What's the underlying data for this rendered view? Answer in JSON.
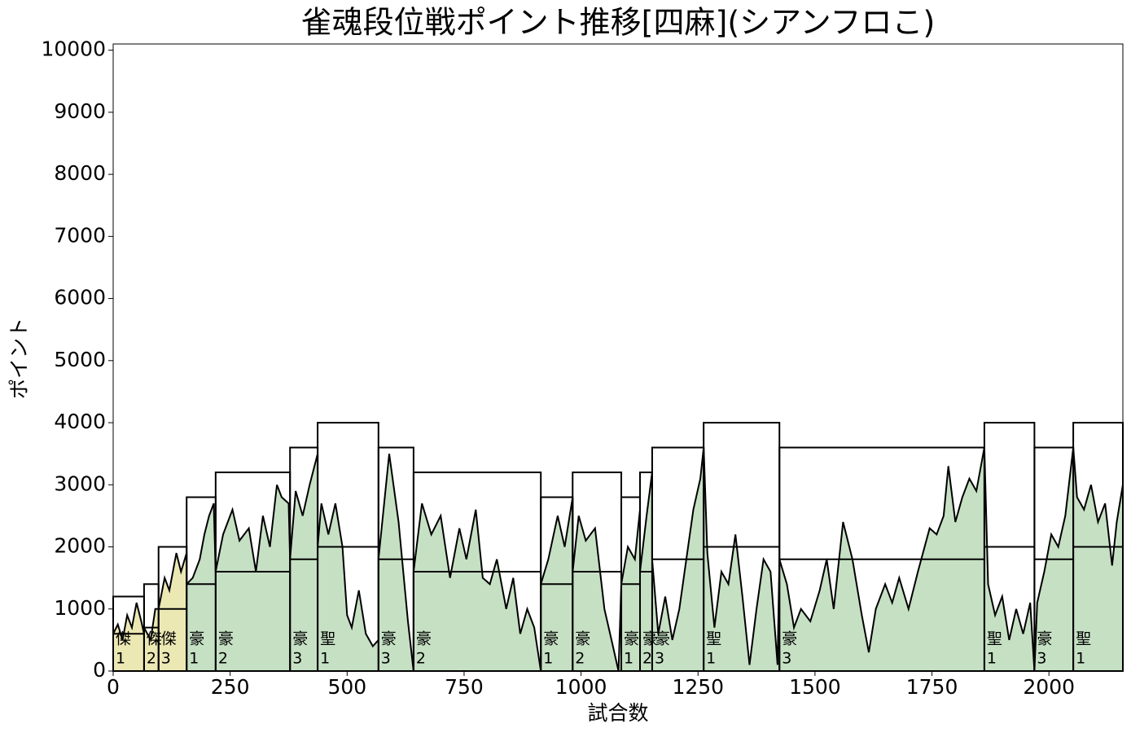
{
  "chart_data": {
    "type": "line",
    "title": "雀魂段位戦ポイント推移[四麻](シアンフロこ)",
    "xlabel": "試合数",
    "ylabel": "ポイント",
    "xlim": [
      0,
      2158
    ],
    "ylim": [
      0,
      10100
    ],
    "xticks": [
      0,
      250,
      500,
      750,
      1000,
      1250,
      1500,
      1750,
      2000
    ],
    "yticks": [
      0,
      1000,
      2000,
      3000,
      4000,
      5000,
      6000,
      7000,
      8000,
      9000,
      10000
    ],
    "line_color": "#000000",
    "segments": [
      {
        "rank": "傑",
        "level": "1",
        "start": 0,
        "end": 66,
        "top": 1200,
        "base": 600,
        "color": "#ece8b4"
      },
      {
        "rank": "傑",
        "level": "2",
        "start": 66,
        "end": 97,
        "top": 1400,
        "base": 700,
        "color": "#ece8b4"
      },
      {
        "rank": "傑",
        "level": "3",
        "start": 97,
        "end": 157,
        "top": 2000,
        "base": 1000,
        "color": "#ece8b4"
      },
      {
        "rank": "豪",
        "level": "1",
        "start": 157,
        "end": 219,
        "top": 2800,
        "base": 1400,
        "color": "#c6e0c4"
      },
      {
        "rank": "豪",
        "level": "2",
        "start": 219,
        "end": 378,
        "top": 3200,
        "base": 1600,
        "color": "#c6e0c4"
      },
      {
        "rank": "豪",
        "level": "3",
        "start": 378,
        "end": 437,
        "top": 3600,
        "base": 1800,
        "color": "#c6e0c4"
      },
      {
        "rank": "聖",
        "level": "1",
        "start": 437,
        "end": 567,
        "top": 4000,
        "base": 2000,
        "color": "#c6e0c4"
      },
      {
        "rank": "豪",
        "level": "3",
        "start": 567,
        "end": 642,
        "top": 3600,
        "base": 1800,
        "color": "#c6e0c4"
      },
      {
        "rank": "豪",
        "level": "2",
        "start": 642,
        "end": 914,
        "top": 3200,
        "base": 1600,
        "color": "#c6e0c4"
      },
      {
        "rank": "豪",
        "level": "1",
        "start": 914,
        "end": 982,
        "top": 2800,
        "base": 1400,
        "color": "#c6e0c4"
      },
      {
        "rank": "豪",
        "level": "2",
        "start": 982,
        "end": 1086,
        "top": 3200,
        "base": 1600,
        "color": "#c6e0c4"
      },
      {
        "rank": "豪",
        "level": "1",
        "start": 1086,
        "end": 1126,
        "top": 2800,
        "base": 1400,
        "color": "#c6e0c4"
      },
      {
        "rank": "豪",
        "level": "2",
        "start": 1126,
        "end": 1152,
        "top": 3200,
        "base": 1600,
        "color": "#c6e0c4"
      },
      {
        "rank": "豪",
        "level": "3",
        "start": 1152,
        "end": 1262,
        "top": 3600,
        "base": 1800,
        "color": "#c6e0c4"
      },
      {
        "rank": "聖",
        "level": "1",
        "start": 1262,
        "end": 1424,
        "top": 4000,
        "base": 2000,
        "color": "#c6e0c4"
      },
      {
        "rank": "豪",
        "level": "3",
        "start": 1424,
        "end": 1862,
        "top": 3600,
        "base": 1800,
        "color": "#c6e0c4"
      },
      {
        "rank": "聖",
        "level": "1",
        "start": 1862,
        "end": 1969,
        "top": 4000,
        "base": 2000,
        "color": "#c6e0c4"
      },
      {
        "rank": "豪",
        "level": "3",
        "start": 1969,
        "end": 2052,
        "top": 3600,
        "base": 1800,
        "color": "#c6e0c4"
      },
      {
        "rank": "聖",
        "level": "1",
        "start": 2052,
        "end": 2158,
        "top": 4000,
        "base": 2000,
        "color": "#c6e0c4"
      }
    ],
    "x": [
      0,
      10,
      20,
      30,
      40,
      50,
      60,
      66,
      66,
      80,
      90,
      97,
      110,
      120,
      135,
      145,
      157,
      157,
      170,
      185,
      195,
      205,
      215,
      219,
      235,
      255,
      270,
      290,
      305,
      320,
      335,
      350,
      360,
      375,
      378,
      390,
      405,
      420,
      437,
      437,
      445,
      460,
      475,
      490,
      500,
      510,
      525,
      540,
      555,
      567,
      567,
      590,
      610,
      630,
      642,
      642,
      660,
      680,
      700,
      720,
      740,
      755,
      775,
      790,
      805,
      820,
      840,
      855,
      870,
      885,
      900,
      914,
      914,
      930,
      950,
      965,
      982,
      982,
      995,
      1010,
      1030,
      1050,
      1065,
      1080,
      1086,
      1100,
      1115,
      1126,
      1126,
      1140,
      1152,
      1152,
      1165,
      1180,
      1195,
      1210,
      1225,
      1240,
      1255,
      1262,
      1270,
      1285,
      1300,
      1315,
      1330,
      1345,
      1360,
      1375,
      1390,
      1405,
      1420,
      1424,
      1440,
      1455,
      1470,
      1490,
      1510,
      1525,
      1540,
      1560,
      1580,
      1600,
      1615,
      1630,
      1650,
      1665,
      1680,
      1700,
      1720,
      1745,
      1760,
      1775,
      1785,
      1800,
      1815,
      1830,
      1845,
      1862,
      1870,
      1885,
      1900,
      1915,
      1930,
      1945,
      1960,
      1969,
      1975,
      1990,
      2005,
      2020,
      2035,
      2052,
      2060,
      2075,
      2090,
      2105,
      2120,
      2135,
      2145,
      2158
    ],
    "values": [
      600,
      750,
      500,
      900,
      700,
      1100,
      800,
      600,
      700,
      500,
      1000,
      1000,
      1500,
      1300,
      1900,
      1600,
      1900,
      1400,
      1500,
      1800,
      2200,
      2500,
      2700,
      1600,
      2200,
      2600,
      2100,
      2300,
      1600,
      2500,
      2000,
      3000,
      2800,
      2700,
      1800,
      2900,
      2500,
      3000,
      3500,
      2000,
      2700,
      2200,
      2700,
      2000,
      900,
      700,
      1300,
      600,
      400,
      500,
      1800,
      3500,
      2400,
      800,
      0,
      1600,
      2700,
      2200,
      2500,
      1500,
      2300,
      1800,
      2600,
      1500,
      1400,
      1800,
      1000,
      1500,
      600,
      1000,
      700,
      0,
      1400,
      1800,
      2500,
      2000,
      2800,
      1600,
      2500,
      2100,
      2300,
      1000,
      500,
      0,
      1400,
      2000,
      1800,
      2600,
      1600,
      2500,
      3200,
      1800,
      600,
      1200,
      500,
      1000,
      1800,
      2600,
      3100,
      3600,
      1900,
      700,
      1600,
      1400,
      2200,
      1200,
      100,
      1000,
      1800,
      1600,
      100,
      1800,
      1400,
      700,
      1000,
      800,
      1300,
      1800,
      1000,
      2400,
      1800,
      900,
      300,
      1000,
      1400,
      1100,
      1500,
      1000,
      1600,
      2300,
      2200,
      2500,
      3300,
      2400,
      2800,
      3100,
      2900,
      3600,
      1400,
      900,
      1200,
      500,
      1000,
      600,
      1100,
      0,
      1100,
      1600,
      2200,
      2000,
      2500,
      3600,
      2800,
      2600,
      3000,
      2400,
      2700,
      1700,
      2400,
      3000
    ]
  }
}
